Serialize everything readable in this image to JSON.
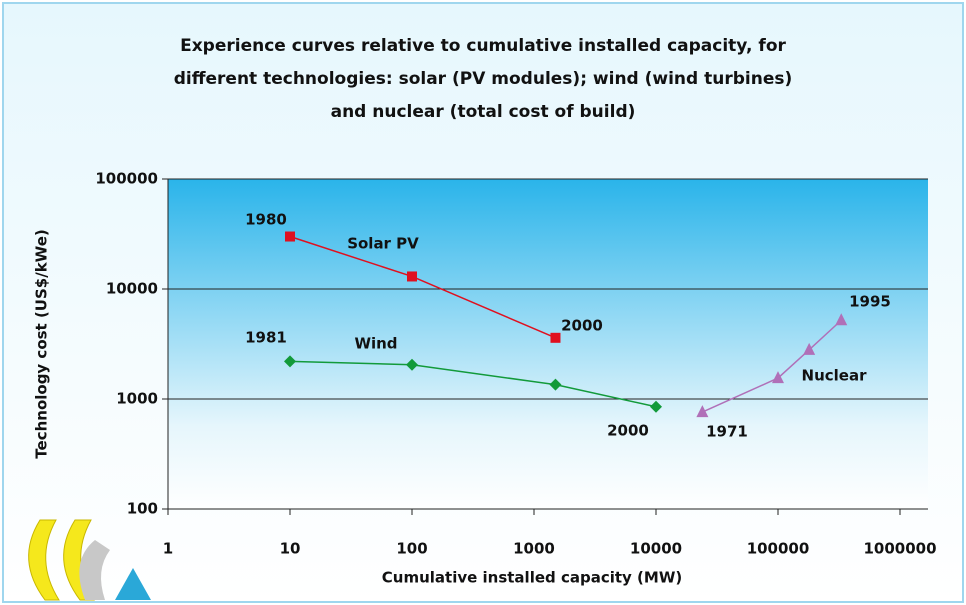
{
  "chart_data": {
    "type": "line",
    "title": [
      "Experience curves relative to cumulative installed capacity, for",
      "different technologies: solar (PV modules); wind (wind turbines)",
      "and nuclear (total cost of build)"
    ],
    "xlabel": "Cumulative installed capacity (MW)",
    "ylabel": "Technology cost (US$/kWe)",
    "xscale": "log",
    "yscale": "log",
    "xlim": [
      1,
      1000000
    ],
    "ylim": [
      100,
      100000
    ],
    "xticks": [
      1,
      10,
      100,
      1000,
      10000,
      100000,
      1000000
    ],
    "yticks": [
      100,
      1000,
      10000,
      100000
    ],
    "grid": true,
    "series": [
      {
        "name": "Solar PV",
        "color": "#e0101f",
        "marker": "square",
        "x": [
          10,
          100,
          1500
        ],
        "values": [
          30000,
          13000,
          3600
        ]
      },
      {
        "name": "Wind",
        "color": "#129a3a",
        "marker": "diamond",
        "x": [
          10,
          100,
          1500,
          10000
        ],
        "values": [
          2200,
          2050,
          1350,
          850
        ]
      },
      {
        "name": "Nuclear",
        "color": "#b070b8",
        "marker": "triangle",
        "x": [
          24000,
          100000,
          180000,
          330000
        ],
        "values": [
          760,
          1550,
          2800,
          5200
        ]
      }
    ],
    "annotations": [
      "1980",
      "2000",
      "1981",
      "2000",
      "1971",
      "1995"
    ]
  }
}
